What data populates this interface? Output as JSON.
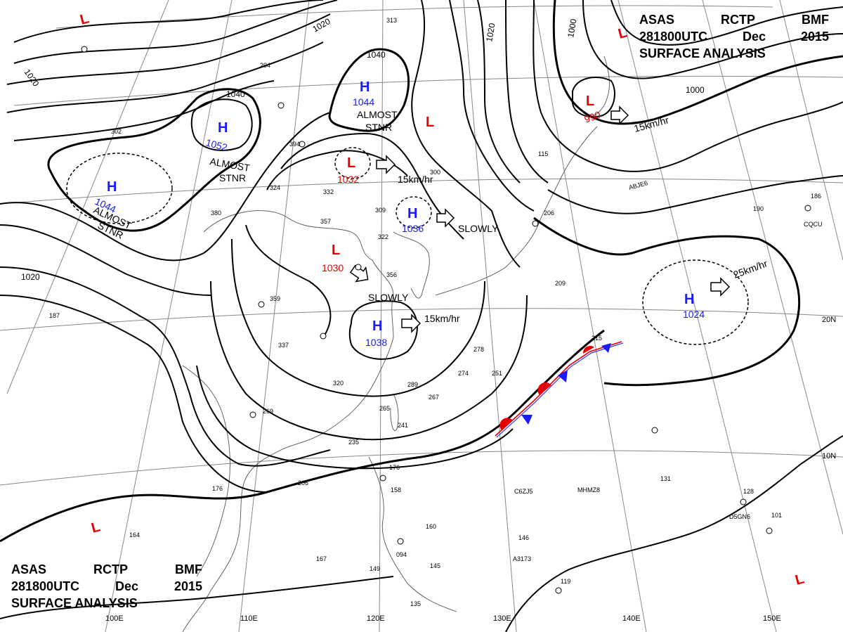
{
  "header": {
    "agency": "ASAS",
    "station": "RCTP",
    "office": "BMF",
    "time": "281800UTC",
    "month": "Dec",
    "year": "2015",
    "title": "SURFACE ANALYSIS"
  },
  "colors": {
    "high": "#1a1aff",
    "low": "#e60000",
    "isobar": "#000000",
    "grid": "#888888",
    "coast": "#555555"
  },
  "isobar_labels": [
    "1020",
    "1020",
    "1040",
    "1040",
    "1020",
    "1000",
    "1000",
    "1020"
  ],
  "lon_labels": [
    "100E",
    "110E",
    "120E",
    "130E",
    "140E",
    "150E"
  ],
  "lat_labels": [
    "20N",
    "10N"
  ],
  "highs": [
    {
      "letter": "H",
      "value": "1044"
    },
    {
      "letter": "H",
      "value": "1052"
    },
    {
      "letter": "H",
      "value": "1044"
    },
    {
      "letter": "H",
      "value": "1036"
    },
    {
      "letter": "H",
      "value": "1038"
    },
    {
      "letter": "H",
      "value": "1024"
    }
  ],
  "lows": [
    {
      "letter": "L",
      "value": "1032"
    },
    {
      "letter": "L",
      "value": "1030"
    },
    {
      "letter": "L",
      "value": "990"
    },
    {
      "letter": "L",
      "value": ""
    },
    {
      "letter": "L",
      "value": ""
    },
    {
      "letter": "L",
      "value": ""
    },
    {
      "letter": "L",
      "value": ""
    },
    {
      "letter": "L",
      "value": ""
    }
  ],
  "motions": [
    {
      "text": "15km/hr"
    },
    {
      "text": "SLOWLY"
    },
    {
      "text": "SLOWLY"
    },
    {
      "text": "15km/hr"
    },
    {
      "text": "15km/hr"
    },
    {
      "text": "25km/hr"
    }
  ],
  "stationary_labels": [
    {
      "line1": "ALMOST",
      "line2": "STNR"
    },
    {
      "line1": "ALMOST",
      "line2": "STNR"
    },
    {
      "line1": "ALMOST",
      "line2": "STNR"
    }
  ],
  "ship_callsigns": [
    "ABJE6",
    "CQCU",
    "C6ZJ5",
    "MHMZ8",
    "A3173",
    "D5GN6"
  ],
  "station_numbers": [
    "313",
    "294",
    "302",
    "394",
    "324",
    "332",
    "380",
    "357",
    "309",
    "300",
    "322",
    "356",
    "359",
    "337",
    "320",
    "269",
    "265",
    "241",
    "235",
    "206",
    "176",
    "164",
    "167",
    "149",
    "094",
    "160",
    "145",
    "135",
    "158",
    "176",
    "278",
    "274",
    "267",
    "251",
    "289",
    "209",
    "206",
    "215",
    "190",
    "186",
    "131",
    "128",
    "101",
    "146",
    "119",
    "115",
    "187"
  ]
}
